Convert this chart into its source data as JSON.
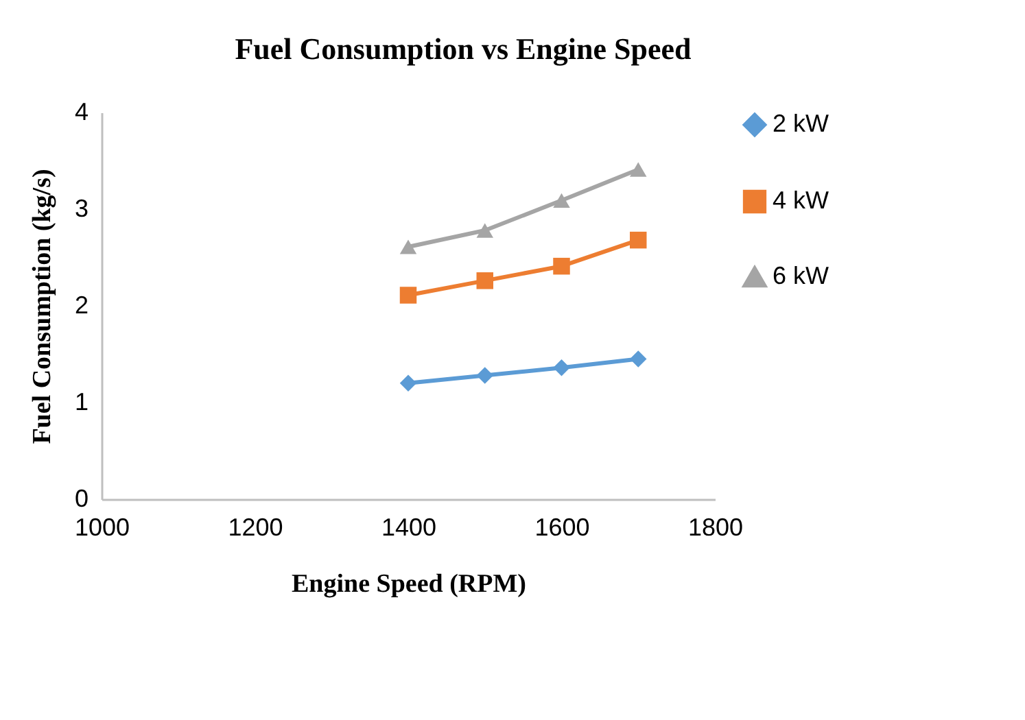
{
  "chart_data": {
    "type": "line",
    "title": "Fuel Consumption vs Engine Speed",
    "xlabel": "Engine Speed (RPM)",
    "ylabel": "Fuel Consumption  (kg/s)",
    "x": [
      1400,
      1500,
      1600,
      1700
    ],
    "series": [
      {
        "name": "2 kW",
        "color": "#5b9bd5",
        "marker": "diamond",
        "values": [
          1.2,
          1.28,
          1.36,
          1.45
        ]
      },
      {
        "name": "4 kW",
        "color": "#ed7d31",
        "marker": "square",
        "values": [
          2.11,
          2.26,
          2.41,
          2.68
        ]
      },
      {
        "name": "6 kW",
        "color": "#a5a5a5",
        "marker": "triangle",
        "values": [
          2.61,
          2.78,
          3.09,
          3.41
        ]
      }
    ],
    "xlim": [
      1000,
      1800
    ],
    "xticks": [
      1000,
      1200,
      1400,
      1600,
      1800
    ],
    "ylim": [
      0,
      4
    ],
    "yticks": [
      0,
      1,
      2,
      3,
      4
    ],
    "grid": false,
    "legend": "right",
    "line_style": "solid"
  }
}
